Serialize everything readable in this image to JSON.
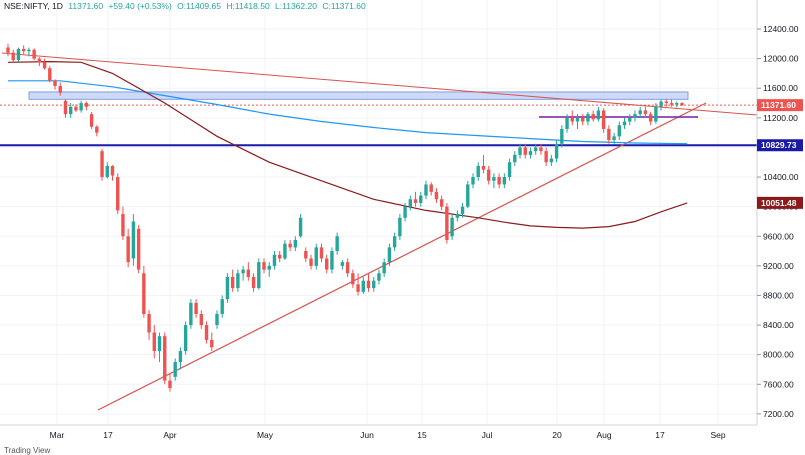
{
  "header": {
    "symbol": "NSE:NIFTY, 1D",
    "last": "11371.60",
    "change": "+59.40 (+0.53%)",
    "open": "O:11409.65",
    "high": "H:11418.50",
    "low": "L:11362.20",
    "close": "C:11371.60"
  },
  "colors": {
    "up": "#26a69a",
    "down": "#ef5350",
    "ma_short": "#2196f3",
    "ma_long": "#8b1a1a",
    "trendline": "#d9534f",
    "support": "#1a1aa6",
    "resistance_zone": "#c5d3f5",
    "short_line": "#7b1fa2"
  },
  "footer": {
    "text": "Trading View"
  },
  "chart_data": {
    "type": "candlestick",
    "y_ticks": [
      7200,
      7600,
      8000,
      8400,
      8800,
      9200,
      9600,
      10000,
      10400,
      10800,
      11200,
      11600,
      12000,
      12400
    ],
    "y_tick_labels": [
      "7200.00",
      "7600.00",
      "8000.00",
      "8400.00",
      "8800.00",
      "9200.00",
      "9600.00",
      "10000.00",
      "10400.00",
      "10800.00",
      "11200.00",
      "11600.00",
      "12000.00",
      "12400.00"
    ],
    "ylim": [
      7050,
      12630
    ],
    "x_labels": [
      "Mar",
      "17",
      "Apr",
      "May",
      "Jun",
      "15",
      "Jul",
      "20",
      "Aug",
      "17",
      "Sep"
    ],
    "price_tags": [
      {
        "label": "11371.60",
        "value": 11371.6,
        "color": "#ef5350"
      },
      {
        "label": "10829.73",
        "value": 10829.73,
        "color": "#1a1aa6"
      },
      {
        "label": "10051.48",
        "value": 10051.48,
        "color": "#8b1a1a"
      }
    ],
    "support_level": 10829.73,
    "resistance_zone": [
      11450,
      11550
    ],
    "candles": [
      [
        12150,
        12200,
        12030,
        12080
      ],
      [
        12080,
        12120,
        11950,
        11980
      ],
      [
        11980,
        12150,
        11960,
        12130
      ],
      [
        12130,
        12180,
        12060,
        12100
      ],
      [
        12100,
        12150,
        12030,
        12120
      ],
      [
        12120,
        12140,
        11980,
        12000
      ],
      [
        12000,
        12020,
        11900,
        11950
      ],
      [
        11950,
        12000,
        11850,
        11870
      ],
      [
        11870,
        11900,
        11680,
        11700
      ],
      [
        11700,
        11720,
        11580,
        11630
      ],
      [
        11630,
        11680,
        11500,
        11540
      ],
      [
        11430,
        11450,
        11200,
        11250
      ],
      [
        11250,
        11400,
        11200,
        11350
      ],
      [
        11350,
        11380,
        11280,
        11300
      ],
      [
        11300,
        11430,
        11270,
        11400
      ],
      [
        11400,
        11420,
        11300,
        11350
      ],
      [
        11250,
        11280,
        11050,
        11080
      ],
      [
        11080,
        11100,
        10950,
        11000
      ],
      [
        10750,
        10780,
        10350,
        10400
      ],
      [
        10400,
        10600,
        10380,
        10550
      ],
      [
        10550,
        10560,
        10350,
        10420
      ],
      [
        10400,
        10450,
        9900,
        9950
      ],
      [
        9900,
        10000,
        9550,
        9600
      ],
      [
        9600,
        9700,
        9180,
        9250
      ],
      [
        9300,
        9900,
        9200,
        9800
      ],
      [
        9700,
        9750,
        9100,
        9150
      ],
      [
        9100,
        9200,
        8500,
        8550
      ],
      [
        8550,
        8600,
        8200,
        8300
      ],
      [
        8300,
        8400,
        7950,
        8050
      ],
      [
        8050,
        8300,
        7900,
        8250
      ],
      [
        8250,
        8300,
        7600,
        7650
      ],
      [
        7650,
        7750,
        7500,
        7550
      ],
      [
        7700,
        7950,
        7650,
        7900
      ],
      [
        7900,
        8100,
        7800,
        8050
      ],
      [
        8050,
        8450,
        8000,
        8400
      ],
      [
        8400,
        8750,
        8350,
        8700
      ],
      [
        8700,
        8750,
        8500,
        8550
      ],
      [
        8550,
        8600,
        8350,
        8400
      ],
      [
        8400,
        8450,
        8150,
        8200
      ],
      [
        8200,
        8300,
        8050,
        8100
      ],
      [
        8400,
        8600,
        8350,
        8550
      ],
      [
        8550,
        8800,
        8500,
        8750
      ],
      [
        8750,
        9100,
        8700,
        9050
      ],
      [
        9050,
        9150,
        8850,
        8900
      ],
      [
        8900,
        9150,
        8850,
        9100
      ],
      [
        9100,
        9200,
        9000,
        9150
      ],
      [
        9150,
        9250,
        9000,
        9050
      ],
      [
        9050,
        9100,
        8850,
        8900
      ],
      [
        8900,
        9300,
        8880,
        9250
      ],
      [
        9250,
        9300,
        9100,
        9150
      ],
      [
        9150,
        9250,
        9050,
        9200
      ],
      [
        9200,
        9400,
        9150,
        9350
      ],
      [
        9350,
        9400,
        9250,
        9300
      ],
      [
        9300,
        9550,
        9280,
        9500
      ],
      [
        9500,
        9550,
        9400,
        9450
      ],
      [
        9450,
        9600,
        9400,
        9550
      ],
      [
        9600,
        9900,
        9580,
        9850
      ],
      [
        9400,
        9450,
        9250,
        9300
      ],
      [
        9300,
        9350,
        9150,
        9200
      ],
      [
        9200,
        9500,
        9150,
        9450
      ],
      [
        9450,
        9500,
        9250,
        9300
      ],
      [
        9300,
        9350,
        9100,
        9150
      ],
      [
        9150,
        9450,
        9100,
        9400
      ],
      [
        9400,
        9650,
        9350,
        9600
      ],
      [
        9200,
        9280,
        9150,
        9250
      ],
      [
        9250,
        9300,
        9050,
        9100
      ],
      [
        9100,
        9150,
        8900,
        8950
      ],
      [
        8950,
        9100,
        8800,
        8850
      ],
      [
        8850,
        9050,
        8820,
        9000
      ],
      [
        9000,
        9100,
        8850,
        8900
      ],
      [
        8900,
        9050,
        8850,
        9000
      ],
      [
        9000,
        9150,
        8950,
        9100
      ],
      [
        9100,
        9300,
        9050,
        9250
      ],
      [
        9250,
        9500,
        9200,
        9450
      ],
      [
        9450,
        9650,
        9400,
        9600
      ],
      [
        9600,
        9900,
        9550,
        9850
      ],
      [
        9850,
        10050,
        9800,
        10000
      ],
      [
        10000,
        10150,
        9950,
        10100
      ],
      [
        10100,
        10200,
        10000,
        10050
      ],
      [
        10050,
        10200,
        10000,
        10150
      ],
      [
        10150,
        10350,
        10100,
        10300
      ],
      [
        10300,
        10330,
        10150,
        10200
      ],
      [
        10200,
        10250,
        10050,
        10100
      ],
      [
        10100,
        10150,
        9950,
        10000
      ],
      [
        10000,
        10050,
        9500,
        9550
      ],
      [
        9600,
        9900,
        9550,
        9850
      ],
      [
        9850,
        9950,
        9800,
        9900
      ],
      [
        9900,
        10050,
        9850,
        10000
      ],
      [
        10000,
        10350,
        9980,
        10300
      ],
      [
        10300,
        10450,
        10250,
        10400
      ],
      [
        10400,
        10600,
        10350,
        10550
      ],
      [
        10550,
        10700,
        10450,
        10500
      ],
      [
        10500,
        10550,
        10300,
        10350
      ],
      [
        10350,
        10450,
        10250,
        10400
      ],
      [
        10400,
        10450,
        10250,
        10300
      ],
      [
        10300,
        10450,
        10250,
        10400
      ],
      [
        10400,
        10650,
        10350,
        10600
      ],
      [
        10600,
        10750,
        10550,
        10700
      ],
      [
        10700,
        10850,
        10650,
        10800
      ],
      [
        10800,
        10850,
        10650,
        10700
      ],
      [
        10700,
        10800,
        10650,
        10750
      ],
      [
        10750,
        10850,
        10700,
        10800
      ],
      [
        10800,
        10850,
        10700,
        10750
      ],
      [
        10750,
        10800,
        10550,
        10600
      ],
      [
        10600,
        10700,
        10550,
        10650
      ],
      [
        10650,
        10900,
        10600,
        10850
      ],
      [
        10850,
        11100,
        10800,
        11050
      ],
      [
        11050,
        11250,
        11000,
        11200
      ],
      [
        11200,
        11300,
        11100,
        11150
      ],
      [
        11150,
        11250,
        11050,
        11200
      ],
      [
        11200,
        11250,
        11100,
        11150
      ],
      [
        11150,
        11280,
        11100,
        11250
      ],
      [
        11250,
        11300,
        11150,
        11180
      ],
      [
        11180,
        11350,
        11150,
        11300
      ],
      [
        11300,
        11330,
        11000,
        11050
      ],
      [
        11050,
        11100,
        10850,
        10900
      ],
      [
        10900,
        11000,
        10850,
        10950
      ],
      [
        10950,
        11150,
        10900,
        11100
      ],
      [
        11100,
        11200,
        11050,
        11150
      ],
      [
        11150,
        11250,
        11100,
        11200
      ],
      [
        11200,
        11300,
        11150,
        11250
      ],
      [
        11250,
        11350,
        11200,
        11300
      ],
      [
        11300,
        11350,
        11200,
        11250
      ],
      [
        11250,
        11280,
        11100,
        11150
      ],
      [
        11150,
        11400,
        11120,
        11350
      ],
      [
        11350,
        11450,
        11300,
        11420
      ],
      [
        11420,
        11450,
        11350,
        11400
      ],
      [
        11400,
        11450,
        11350,
        11380
      ],
      [
        11380,
        11420,
        11340,
        11400
      ],
      [
        11400,
        11410,
        11360,
        11371.6
      ]
    ],
    "ma_long": [
      [
        0,
        11950
      ],
      [
        8,
        11960
      ],
      [
        14,
        11950
      ],
      [
        20,
        11800
      ],
      [
        30,
        11400
      ],
      [
        40,
        10950
      ],
      [
        50,
        10600
      ],
      [
        60,
        10350
      ],
      [
        70,
        10100
      ],
      [
        80,
        9950
      ],
      [
        90,
        9850
      ],
      [
        95,
        9790
      ],
      [
        100,
        9740
      ],
      [
        105,
        9720
      ],
      [
        110,
        9710
      ],
      [
        115,
        9730
      ],
      [
        120,
        9800
      ],
      [
        125,
        9930
      ],
      [
        130,
        10051
      ]
    ],
    "ma_short": [
      [
        0,
        11700
      ],
      [
        10,
        11700
      ],
      [
        20,
        11620
      ],
      [
        30,
        11500
      ],
      [
        40,
        11380
      ],
      [
        50,
        11250
      ],
      [
        60,
        11150
      ],
      [
        70,
        11070
      ],
      [
        80,
        11000
      ],
      [
        90,
        10960
      ],
      [
        100,
        10920
      ],
      [
        110,
        10880
      ],
      [
        120,
        10860
      ],
      [
        130,
        10850
      ]
    ]
  }
}
